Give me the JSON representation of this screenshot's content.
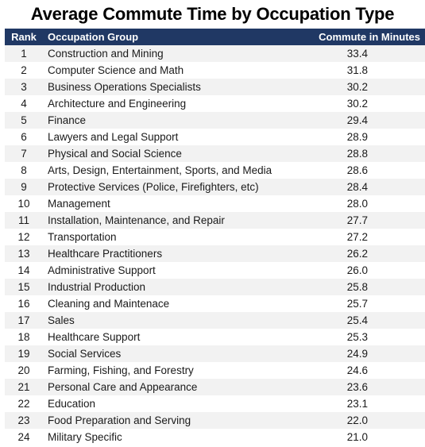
{
  "title": "Average Commute Time by Occupation Type",
  "header": {
    "rank": "Rank",
    "occupation": "Occupation Group",
    "minutes": "Commute in Minutes"
  },
  "colors": {
    "header_bg": "#203864",
    "header_text": "#ffffff",
    "stripe": "#f2f2f2"
  },
  "chart_data": {
    "type": "table",
    "title": "Average Commute Time by Occupation Type",
    "columns": [
      "Rank",
      "Occupation Group",
      "Commute in Minutes"
    ],
    "rows": [
      [
        "1",
        "Construction and Mining",
        "33.4"
      ],
      [
        "2",
        "Computer Science and Math",
        "31.8"
      ],
      [
        "3",
        "Business Operations Specialists",
        "30.2"
      ],
      [
        "4",
        "Architecture and Engineering",
        "30.2"
      ],
      [
        "5",
        "Finance",
        "29.4"
      ],
      [
        "6",
        "Lawyers and Legal Support",
        "28.9"
      ],
      [
        "7",
        "Physical and Social Science",
        "28.8"
      ],
      [
        "8",
        "Arts, Design, Entertainment, Sports, and Media",
        "28.6"
      ],
      [
        "9",
        "Protective Services (Police, Firefighters, etc)",
        "28.4"
      ],
      [
        "10",
        "Management",
        "28.0"
      ],
      [
        "11",
        "Installation, Maintenance, and Repair",
        "27.7"
      ],
      [
        "12",
        "Transportation",
        "27.2"
      ],
      [
        "13",
        "Healthcare Practitioners",
        "26.2"
      ],
      [
        "14",
        "Administrative Support",
        "26.0"
      ],
      [
        "15",
        "Industrial Production",
        "25.8"
      ],
      [
        "16",
        "Cleaning and Maintenace",
        "25.7"
      ],
      [
        "17",
        "Sales",
        "25.4"
      ],
      [
        "18",
        "Healthcare Support",
        "25.3"
      ],
      [
        "19",
        "Social Services",
        "24.9"
      ],
      [
        "20",
        "Farming, Fishing, and Forestry",
        "24.6"
      ],
      [
        "21",
        "Personal Care and Appearance",
        "23.6"
      ],
      [
        "22",
        "Education",
        "23.1"
      ],
      [
        "23",
        "Food Preparation and Serving",
        "22.0"
      ],
      [
        "24",
        "Military Specific",
        "21.0"
      ]
    ]
  }
}
